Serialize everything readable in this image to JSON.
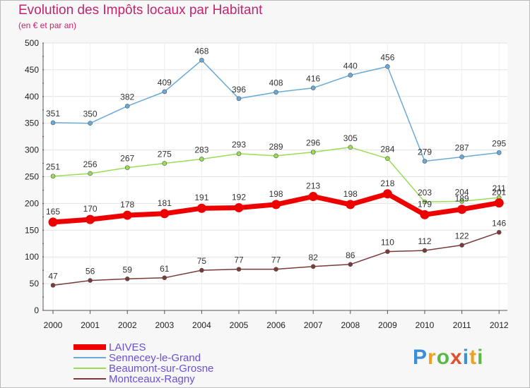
{
  "title": "Evolution des Impôts locaux par Habitant",
  "subtitle": "(en € et par an)",
  "logo": {
    "text": "Proxiti",
    "colors": [
      "#3a8fd8",
      "#f0a020",
      "#5ab848",
      "#e05030",
      "#3a8fd8",
      "#f0a020",
      "#5ab848"
    ]
  },
  "chart_data": {
    "type": "line",
    "title": "Evolution des Impôts locaux par Habitant",
    "subtitle": "(en € et par an)",
    "x": [
      "2000",
      "2001",
      "2002",
      "2003",
      "2004",
      "2005",
      "2006",
      "2007",
      "2008",
      "2009",
      "2010",
      "2011",
      "2012"
    ],
    "ylim": [
      0,
      500
    ],
    "yticks": [
      0,
      50,
      100,
      150,
      200,
      250,
      300,
      350,
      400,
      450,
      500
    ],
    "grid": true,
    "legend_position": "bottom-left",
    "series": [
      {
        "name": "LAIVES",
        "color": "#ee0000",
        "emphasis": true,
        "values": [
          165,
          170,
          178,
          181,
          191,
          192,
          198,
          213,
          198,
          218,
          179,
          189,
          201
        ]
      },
      {
        "name": "Sennecey-le-Grand",
        "color": "#6aaad8",
        "values": [
          351,
          350,
          382,
          409,
          468,
          396,
          408,
          416,
          440,
          456,
          279,
          287,
          295
        ]
      },
      {
        "name": "Beaumont-sur-Grosne",
        "color": "#99dd55",
        "values": [
          251,
          256,
          267,
          275,
          283,
          293,
          289,
          296,
          305,
          284,
          203,
          204,
          211
        ]
      },
      {
        "name": "Montceaux-Ragny",
        "color": "#7a3a3a",
        "values": [
          47,
          56,
          59,
          61,
          75,
          77,
          77,
          82,
          86,
          110,
          112,
          122,
          146
        ]
      }
    ]
  }
}
